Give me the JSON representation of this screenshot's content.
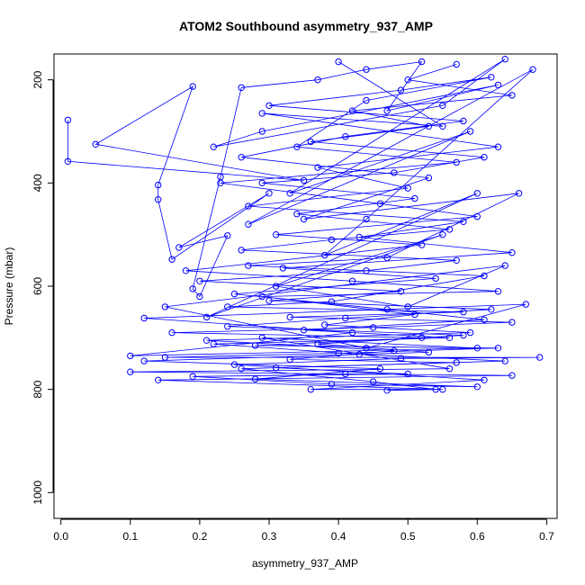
{
  "chart_data": {
    "type": "line",
    "title": "ATOM2 Southbound asymmetry_937_AMP",
    "xlabel": "asymmetry_937_AMP",
    "ylabel": "Pressure (mbar)",
    "xlim": [
      -0.01,
      0.715
    ],
    "ylim": [
      1050,
      150
    ],
    "y_reversed": true,
    "x_ticks": [
      0.0,
      0.1,
      0.2,
      0.3,
      0.4,
      0.5,
      0.6,
      0.7
    ],
    "x_tick_labels": [
      "0.0",
      "0.1",
      "0.2",
      "0.3",
      "0.4",
      "0.5",
      "0.6",
      "0.7"
    ],
    "y_ticks": [
      200,
      400,
      600,
      800,
      1000
    ],
    "y_tick_labels": [
      "200",
      "400",
      "600",
      "800",
      "1000"
    ],
    "grid": false,
    "color": "#0000ff",
    "marker": "open-circle",
    "series": [
      {
        "points": [
          [
            0.01,
            278
          ],
          [
            0.01,
            358
          ],
          [
            0.35,
            395
          ],
          [
            0.05,
            325
          ],
          [
            0.19,
            213
          ],
          [
            0.14,
            404
          ],
          [
            0.14,
            432
          ],
          [
            0.16,
            548
          ],
          [
            0.3,
            420
          ],
          [
            0.17,
            525
          ],
          [
            0.24,
            502
          ],
          [
            0.2,
            620
          ],
          [
            0.19,
            605
          ],
          [
            0.23,
            388
          ],
          [
            0.26,
            215
          ],
          [
            0.37,
            200
          ],
          [
            0.44,
            180
          ],
          [
            0.52,
            165
          ],
          [
            0.47,
            260
          ],
          [
            0.63,
            210
          ],
          [
            0.29,
            300
          ],
          [
            0.22,
            330
          ],
          [
            0.55,
            250
          ],
          [
            0.64,
            160
          ],
          [
            0.33,
            420
          ],
          [
            0.59,
            300
          ],
          [
            0.27,
            480
          ],
          [
            0.68,
            180
          ],
          [
            0.44,
            470
          ],
          [
            0.38,
            540
          ],
          [
            0.6,
            420
          ],
          [
            0.21,
            660
          ],
          [
            0.55,
            500
          ],
          [
            0.31,
            600
          ],
          [
            0.5,
            640
          ],
          [
            0.64,
            560
          ],
          [
            0.15,
            640
          ],
          [
            0.44,
            720
          ],
          [
            0.67,
            635
          ],
          [
            0.12,
            662
          ],
          [
            0.42,
            690
          ],
          [
            0.1,
            735
          ],
          [
            0.6,
            720
          ],
          [
            0.29,
            700
          ],
          [
            0.56,
            760
          ],
          [
            0.1,
            766
          ],
          [
            0.41,
            770
          ],
          [
            0.65,
            773
          ],
          [
            0.14,
            782
          ],
          [
            0.55,
            800
          ],
          [
            0.36,
            800
          ],
          [
            0.61,
            782
          ],
          [
            0.25,
            752
          ],
          [
            0.49,
            740
          ],
          [
            0.69,
            738
          ],
          [
            0.15,
            738
          ],
          [
            0.4,
            730
          ],
          [
            0.63,
            720
          ],
          [
            0.28,
            715
          ],
          [
            0.52,
            700
          ],
          [
            0.16,
            690
          ],
          [
            0.45,
            680
          ],
          [
            0.65,
            670
          ],
          [
            0.33,
            660
          ],
          [
            0.58,
            650
          ],
          [
            0.24,
            640
          ],
          [
            0.39,
            630
          ],
          [
            0.61,
            580
          ],
          [
            0.27,
            560
          ],
          [
            0.47,
            545
          ],
          [
            0.66,
            420
          ],
          [
            0.35,
            470
          ],
          [
            0.53,
            390
          ],
          [
            0.26,
            350
          ],
          [
            0.41,
            310
          ],
          [
            0.58,
            280
          ],
          [
            0.3,
            250
          ],
          [
            0.49,
            220
          ],
          [
            0.62,
            195
          ],
          [
            0.44,
            240
          ],
          [
            0.34,
            330
          ],
          [
            0.57,
            360
          ],
          [
            0.23,
            400
          ],
          [
            0.46,
            440
          ],
          [
            0.6,
            465
          ],
          [
            0.31,
            500
          ],
          [
            0.52,
            520
          ],
          [
            0.18,
            570
          ],
          [
            0.42,
            590
          ],
          [
            0.63,
            610
          ],
          [
            0.29,
            620
          ],
          [
            0.51,
            655
          ],
          [
            0.38,
            675
          ],
          [
            0.59,
            690
          ],
          [
            0.21,
            705
          ],
          [
            0.48,
            725
          ],
          [
            0.33,
            742
          ],
          [
            0.57,
            748
          ],
          [
            0.26,
            760
          ],
          [
            0.45,
            785
          ],
          [
            0.54,
            800
          ],
          [
            0.47,
            802
          ]
        ]
      },
      {
        "points": [
          [
            0.4,
            165
          ],
          [
            0.55,
            290
          ],
          [
            0.29,
            265
          ],
          [
            0.63,
            330
          ],
          [
            0.37,
            370
          ],
          [
            0.5,
            410
          ],
          [
            0.27,
            445
          ],
          [
            0.58,
            475
          ],
          [
            0.43,
            505
          ],
          [
            0.65,
            535
          ],
          [
            0.32,
            565
          ],
          [
            0.54,
            585
          ],
          [
            0.25,
            615
          ],
          [
            0.47,
            645
          ],
          [
            0.61,
            665
          ],
          [
            0.35,
            685
          ],
          [
            0.56,
            700
          ],
          [
            0.22,
            712
          ],
          [
            0.43,
            732
          ],
          [
            0.64,
            745
          ],
          [
            0.31,
            758
          ],
          [
            0.5,
            770
          ],
          [
            0.19,
            775
          ],
          [
            0.39,
            790
          ],
          [
            0.6,
            795
          ],
          [
            0.28,
            780
          ],
          [
            0.46,
            760
          ],
          [
            0.12,
            745
          ],
          [
            0.53,
            728
          ],
          [
            0.37,
            712
          ],
          [
            0.58,
            695
          ],
          [
            0.24,
            678
          ],
          [
            0.41,
            662
          ],
          [
            0.62,
            645
          ],
          [
            0.3,
            628
          ],
          [
            0.49,
            610
          ],
          [
            0.2,
            590
          ],
          [
            0.44,
            570
          ],
          [
            0.57,
            550
          ],
          [
            0.26,
            530
          ],
          [
            0.39,
            510
          ],
          [
            0.56,
            490
          ],
          [
            0.34,
            460
          ],
          [
            0.51,
            430
          ],
          [
            0.29,
            400
          ],
          [
            0.48,
            380
          ],
          [
            0.61,
            350
          ],
          [
            0.36,
            320
          ],
          [
            0.53,
            290
          ],
          [
            0.42,
            260
          ],
          [
            0.65,
            230
          ],
          [
            0.5,
            200
          ],
          [
            0.57,
            170
          ]
        ]
      }
    ]
  }
}
